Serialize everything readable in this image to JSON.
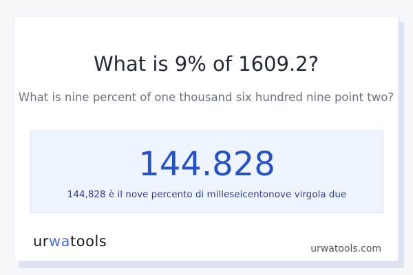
{
  "question": {
    "title": "What is 9% of 1609.2?",
    "subtitle": "What is nine percent of one thousand six hundred nine point two?"
  },
  "result": {
    "value": "144.828",
    "words": "144,828 è il nove percento di milleseicentonove virgola due"
  },
  "footer": {
    "logo": {
      "part1": "ur",
      "part2": "wa",
      "part3": "too",
      "part4": "ls"
    },
    "site": "urwatools.com"
  },
  "colors": {
    "accent": "#2652c7",
    "result_bg": "#eef5fe"
  }
}
